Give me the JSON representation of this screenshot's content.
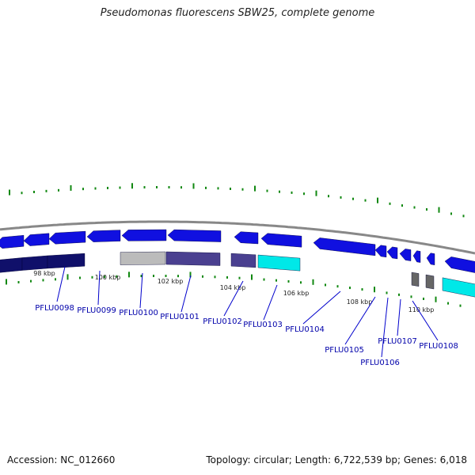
{
  "title": "Pseudomonas fluorescens SBW25, complete genome",
  "footer": {
    "accession": "Accession: NC_012660",
    "summary": "Topology: circular; Length: 6,722,539 bp; Genes: 6,018"
  },
  "colors": {
    "gene_forward": "#1010e0",
    "backbone": "#888888",
    "tick": "#118811",
    "label_line": "#0000cc",
    "label_text": "#0000aa",
    "cog_navy": "#10106a",
    "cog_silver": "#bbbbbb",
    "cog_slate": "#4a4090",
    "cog_cyan": "#00e8e8",
    "cog_gray": "#666666"
  },
  "scale_labels": [
    "98 kbp",
    "100 kbp",
    "102 kbp",
    "104 kbp",
    "106 kbp",
    "108 kbp",
    "110 kbp"
  ],
  "genes": [
    {
      "label": "PFLU0098"
    },
    {
      "label": "PFLU0099"
    },
    {
      "label": "PFLU0100"
    },
    {
      "label": "PFLU0101"
    },
    {
      "label": "PFLU0102"
    },
    {
      "label": "PFLU0103"
    },
    {
      "label": "PFLU0104"
    },
    {
      "label": "PFLU0105"
    },
    {
      "label": "PFLU0106"
    },
    {
      "label": "PFLU0107"
    },
    {
      "label": "PFLU0108"
    }
  ]
}
